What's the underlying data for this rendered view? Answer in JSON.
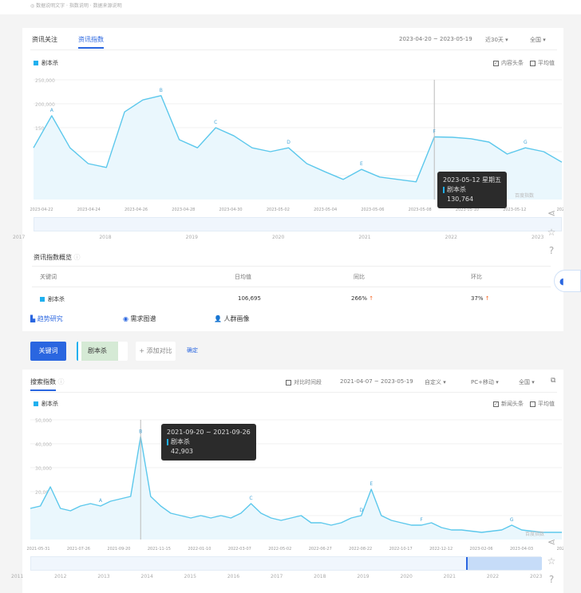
{
  "top_note": "◎ 数据说明文字 · 指数说明 · 数据来源说明",
  "news": {
    "tabs": [
      {
        "label": "资讯关注"
      },
      {
        "label": "资讯指数"
      }
    ],
    "date_range": "2023-04-20 ~ 2023-05-19",
    "period_select": "近30天",
    "region_select": "全国",
    "legend": "剧本杀",
    "checkbox_headlines": {
      "label": "内容头条",
      "checked": true
    },
    "checkbox_average": {
      "label": "平均值",
      "checked": false
    },
    "watermark": "百度指数",
    "tooltip": {
      "date": "2023-05-12 星期五",
      "series": "剧本杀",
      "value": "130,764"
    },
    "slider_years": [
      "2017",
      "2018",
      "2019",
      "2020",
      "2021",
      "2022",
      "2023"
    ],
    "overview": {
      "title": "资讯指数概览",
      "headers": [
        "关键词",
        "日均值",
        "同比",
        "环比"
      ],
      "rows": [
        {
          "keyword": "剧本杀",
          "daily_avg": "106,695",
          "yoy": "266%",
          "mom": "37%",
          "trend": "up"
        }
      ]
    }
  },
  "section_tabs": [
    {
      "label": "趋势研究",
      "icon": "bar-chart-icon"
    },
    {
      "label": "需求图谱",
      "icon": "target-icon"
    },
    {
      "label": "人群画像",
      "icon": "user-icon"
    }
  ],
  "keyword_bar": {
    "keyword_button": "关键词",
    "keyword_value": "剧本杀",
    "add_compare": "+ 添加对比",
    "confirm": "确定"
  },
  "search": {
    "title": "搜索指数",
    "compare_period": {
      "label": "对比时间段",
      "checked": false
    },
    "date_range": "2021-04-07 ~ 2023-05-19",
    "period_select": "自定义",
    "device_select": "PC+移动",
    "region_select": "全国",
    "legend": "剧本杀",
    "checkbox_headlines": {
      "label": "新闻头条",
      "checked": true
    },
    "checkbox_average": {
      "label": "平均值",
      "checked": false
    },
    "watermark": "百度指数",
    "tooltip": {
      "date": "2021-09-20 ~ 2021-09-26",
      "series": "剧本杀",
      "value": "42,903"
    },
    "slider_years": [
      "2011",
      "2012",
      "2013",
      "2014",
      "2015",
      "2016",
      "2017",
      "2018",
      "2019",
      "2020",
      "2021",
      "2022",
      "2023"
    ]
  },
  "colors": {
    "accent": "#2a66e0",
    "series": "#5cc8ec",
    "area": "#eaf7fd",
    "up_arrow": "#f56c2c"
  },
  "chart_data": [
    {
      "type": "area",
      "series": [
        {
          "name": "剧本杀",
          "values": [
            108000,
            175000,
            108000,
            75000,
            67000,
            183000,
            208000,
            217000,
            125000,
            108000,
            150000,
            133000,
            108000,
            100000,
            108000,
            75000,
            58000,
            42000,
            63000,
            47000,
            42000,
            37000,
            130764,
            130000,
            127000,
            120000,
            95000,
            108000,
            100000,
            78000
          ]
        }
      ],
      "x_ticks": [
        "2023-04-22",
        "2023-04-24",
        "2023-04-26",
        "2023-04-28",
        "2023-04-30",
        "2023-05-02",
        "2023-05-04",
        "2023-05-06",
        "2023-05-08",
        "2023-05-10",
        "2023-05-12",
        "2023"
      ],
      "y_ticks": [
        "50,000",
        "100,000",
        "150,000",
        "200,000",
        "250,000"
      ],
      "ylim": [
        0,
        250000
      ],
      "annotations": [
        {
          "label": "A",
          "index": 1
        },
        {
          "label": "B",
          "index": 7
        },
        {
          "label": "C",
          "index": 10
        },
        {
          "label": "D",
          "index": 14
        },
        {
          "label": "E",
          "index": 18
        },
        {
          "label": "F",
          "index": 22
        },
        {
          "label": "G",
          "index": 27
        }
      ],
      "grid": true
    },
    {
      "type": "area",
      "series": [
        {
          "name": "剧本杀",
          "values": [
            13000,
            14000,
            22000,
            13000,
            12000,
            14000,
            15000,
            14000,
            16000,
            17000,
            18000,
            42903,
            18000,
            14000,
            11000,
            10000,
            9000,
            10000,
            9000,
            10000,
            9000,
            11000,
            15000,
            11000,
            9000,
            8000,
            9000,
            10000,
            7000,
            7000,
            6000,
            7000,
            9000,
            10000,
            21000,
            10000,
            8000,
            7000,
            6000,
            6000,
            7000,
            5000,
            4000,
            4000,
            3500,
            3000,
            3500,
            4000,
            6000,
            4000,
            3500,
            3000,
            3000,
            3000
          ]
        }
      ],
      "x_ticks": [
        "2021-05-31",
        "2021-07-26",
        "2021-09-20",
        "2021-11-15",
        "2022-01-10",
        "2022-03-07",
        "2022-05-02",
        "2022-06-27",
        "2022-08-22",
        "2022-10-17",
        "2022-12-12",
        "2023-02-06",
        "2023-04-03",
        "2023"
      ],
      "y_ticks": [
        "10,000",
        "20,000",
        "30,000",
        "40,000",
        "50,000"
      ],
      "ylim": [
        0,
        50000
      ],
      "annotations": [
        {
          "label": "A",
          "index": 7
        },
        {
          "label": "B",
          "index": 11
        },
        {
          "label": "C",
          "index": 22
        },
        {
          "label": "D",
          "index": 33
        },
        {
          "label": "E",
          "index": 34
        },
        {
          "label": "F",
          "index": 39
        },
        {
          "label": "G",
          "index": 48
        }
      ],
      "grid": true
    }
  ]
}
